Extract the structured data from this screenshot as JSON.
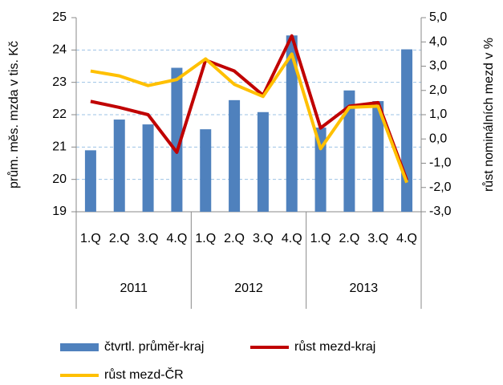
{
  "chart_data": {
    "type": "bar-line",
    "categories": [
      "1.Q",
      "2.Q",
      "3.Q",
      "4.Q",
      "1.Q",
      "2.Q",
      "3.Q",
      "4.Q",
      "1.Q",
      "2.Q",
      "3.Q",
      "4.Q"
    ],
    "groups": [
      "2011",
      "2012",
      "2013"
    ],
    "ylabel": "prům. měs. mzda v tis. Kč",
    "y2label": "růst nominálních mezd v %",
    "ylim": [
      19,
      25
    ],
    "yticks": [
      19,
      20,
      21,
      22,
      23,
      24,
      25
    ],
    "y2lim": [
      -3,
      5
    ],
    "y2ticks": [
      {
        "value": -3,
        "label": "-3,0"
      },
      {
        "value": -2,
        "label": "-2,0"
      },
      {
        "value": -1,
        "label": "-1,0"
      },
      {
        "value": 0,
        "label": "0,0"
      },
      {
        "value": 1,
        "label": "1,0"
      },
      {
        "value": 2,
        "label": "2,0"
      },
      {
        "value": 3,
        "label": "3,0"
      },
      {
        "value": 4,
        "label": "4,0"
      },
      {
        "value": 5,
        "label": "5,0"
      }
    ],
    "grid": true,
    "series": [
      {
        "name": "čtvrtl. průměr-kraj",
        "type": "bar",
        "color": "#4f81bd",
        "values": [
          20.9,
          21.85,
          21.7,
          23.45,
          21.55,
          22.45,
          22.08,
          24.45,
          21.6,
          22.75,
          22.42,
          24.02
        ]
      },
      {
        "name": "růst mezd-kraj",
        "type": "line",
        "axis": "y2",
        "color": "#c00000",
        "values": [
          1.55,
          1.3,
          1.0,
          -0.55,
          3.25,
          2.8,
          1.8,
          4.25,
          0.45,
          1.35,
          1.5,
          -1.7
        ]
      },
      {
        "name": "růst mezd-ČR",
        "type": "line",
        "axis": "y2",
        "color": "#ffc000",
        "values": [
          2.8,
          2.6,
          2.2,
          2.45,
          3.3,
          2.25,
          1.75,
          3.5,
          -0.4,
          1.3,
          1.35,
          -1.8
        ]
      }
    ]
  }
}
